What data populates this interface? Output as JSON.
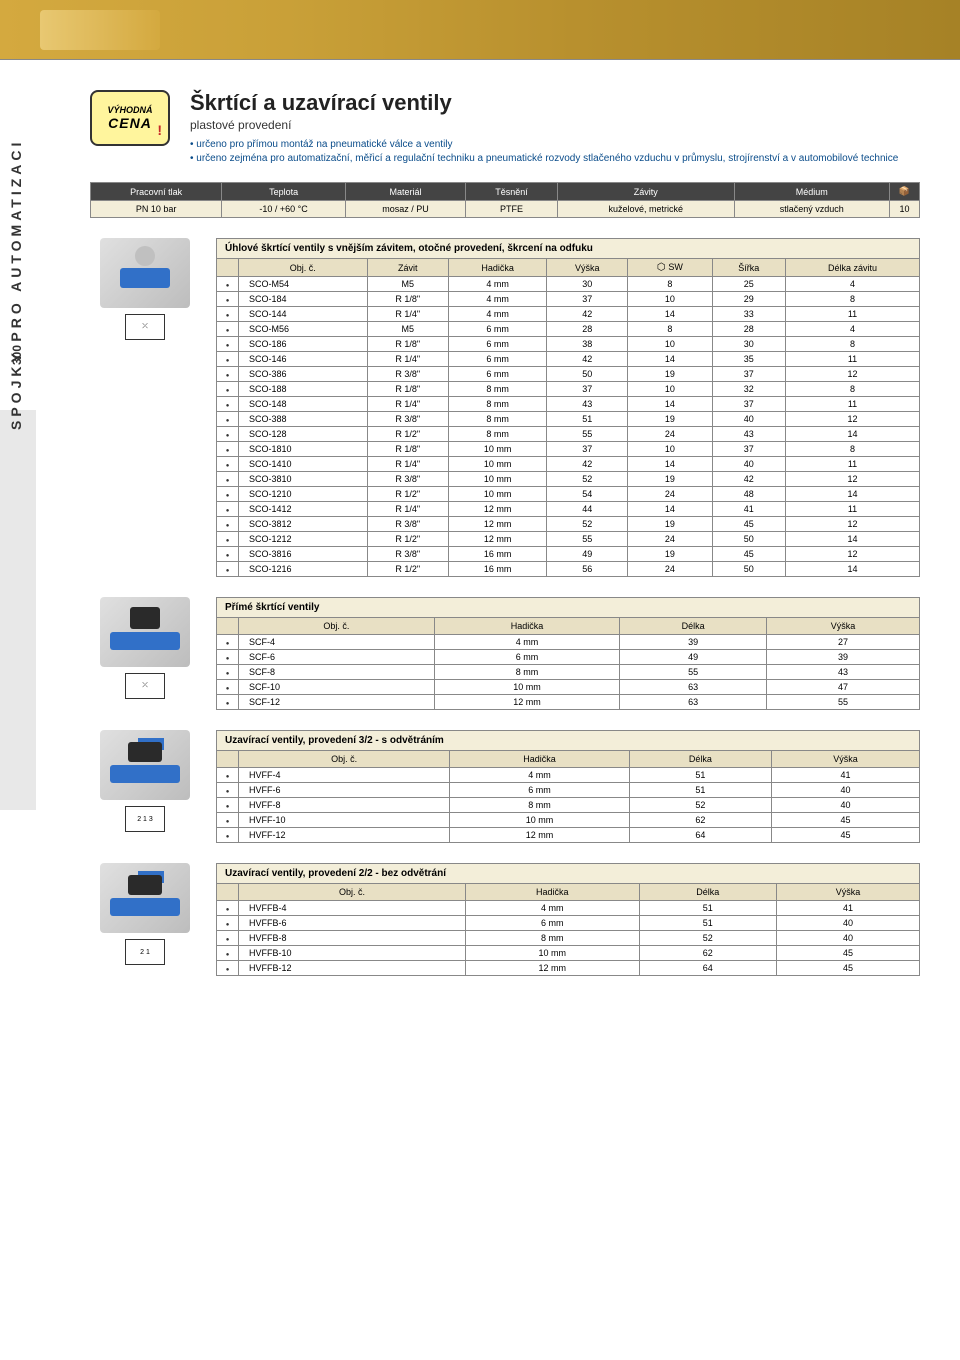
{
  "sidebar": {
    "page_num": "300",
    "tab_text": "SPOJKY PRO AUTOMATIZACI"
  },
  "badge": {
    "line1": "VÝHODNÁ",
    "line2": "CENA"
  },
  "heading": {
    "title": "Škrtící a uzavírací ventily",
    "subtitle": "plastové provedení",
    "bullets": [
      "určeno pro přímou montáž na pneumatické válce a ventily",
      "určeno zejména pro automatizační, měřicí a regulační techniku a pneumatické rozvody stlačeného vzduchu v průmyslu, strojírenství a v automobilové technice"
    ]
  },
  "spec": {
    "headers": [
      "Pracovní tlak",
      "Teplota",
      "Materiál",
      "Těsnění",
      "Závity",
      "Médium",
      ""
    ],
    "row": [
      "PN 10 bar",
      "-10 / +60 °C",
      "mosaz / PU",
      "PTFE",
      "kuželové, metrické",
      "stlačený vzduch",
      "10"
    ]
  },
  "table1": {
    "caption": "Úhlové škrtící ventily s vnějším závitem, otočné provedení, škrcení na odfuku",
    "headers": [
      "",
      "Obj. č.",
      "Závit",
      "Hadička",
      "Výška",
      "SW",
      "Šířka",
      "Délka závitu"
    ],
    "rows": [
      [
        "SCO-M54",
        "M5",
        "4 mm",
        "30",
        "8",
        "25",
        "4"
      ],
      [
        "SCO-184",
        "R 1/8\"",
        "4 mm",
        "37",
        "10",
        "29",
        "8"
      ],
      [
        "SCO-144",
        "R 1/4\"",
        "4 mm",
        "42",
        "14",
        "33",
        "11"
      ],
      [
        "SCO-M56",
        "M5",
        "6 mm",
        "28",
        "8",
        "28",
        "4"
      ],
      [
        "SCO-186",
        "R 1/8\"",
        "6 mm",
        "38",
        "10",
        "30",
        "8"
      ],
      [
        "SCO-146",
        "R 1/4\"",
        "6 mm",
        "42",
        "14",
        "35",
        "11"
      ],
      [
        "SCO-386",
        "R 3/8\"",
        "6 mm",
        "50",
        "19",
        "37",
        "12"
      ],
      [
        "SCO-188",
        "R 1/8\"",
        "8 mm",
        "37",
        "10",
        "32",
        "8"
      ],
      [
        "SCO-148",
        "R 1/4\"",
        "8 mm",
        "43",
        "14",
        "37",
        "11"
      ],
      [
        "SCO-388",
        "R 3/8\"",
        "8 mm",
        "51",
        "19",
        "40",
        "12"
      ],
      [
        "SCO-128",
        "R 1/2\"",
        "8 mm",
        "55",
        "24",
        "43",
        "14"
      ],
      [
        "SCO-1810",
        "R 1/8\"",
        "10 mm",
        "37",
        "10",
        "37",
        "8"
      ],
      [
        "SCO-1410",
        "R 1/4\"",
        "10 mm",
        "42",
        "14",
        "40",
        "11"
      ],
      [
        "SCO-3810",
        "R 3/8\"",
        "10 mm",
        "52",
        "19",
        "42",
        "12"
      ],
      [
        "SCO-1210",
        "R 1/2\"",
        "10 mm",
        "54",
        "24",
        "48",
        "14"
      ],
      [
        "SCO-1412",
        "R 1/4\"",
        "12 mm",
        "44",
        "14",
        "41",
        "11"
      ],
      [
        "SCO-3812",
        "R 3/8\"",
        "12 mm",
        "52",
        "19",
        "45",
        "12"
      ],
      [
        "SCO-1212",
        "R 1/2\"",
        "12 mm",
        "55",
        "24",
        "50",
        "14"
      ],
      [
        "SCO-3816",
        "R 3/8\"",
        "16 mm",
        "49",
        "19",
        "45",
        "12"
      ],
      [
        "SCO-1216",
        "R 1/2\"",
        "16 mm",
        "56",
        "24",
        "50",
        "14"
      ]
    ]
  },
  "table2": {
    "caption": "Přímé škrtící ventily",
    "headers": [
      "",
      "Obj. č.",
      "Hadička",
      "Délka",
      "Výška"
    ],
    "rows": [
      [
        "SCF-4",
        "4 mm",
        "39",
        "27"
      ],
      [
        "SCF-6",
        "6 mm",
        "49",
        "39"
      ],
      [
        "SCF-8",
        "8 mm",
        "55",
        "43"
      ],
      [
        "SCF-10",
        "10 mm",
        "63",
        "47"
      ],
      [
        "SCF-12",
        "12 mm",
        "63",
        "55"
      ]
    ]
  },
  "table3": {
    "caption": "Uzavírací ventily, provedení 3/2 - s odvětráním",
    "headers": [
      "",
      "Obj. č.",
      "Hadička",
      "Délka",
      "Výška"
    ],
    "rows": [
      [
        "HVFF-4",
        "4 mm",
        "51",
        "41"
      ],
      [
        "HVFF-6",
        "6 mm",
        "51",
        "40"
      ],
      [
        "HVFF-8",
        "8 mm",
        "52",
        "40"
      ],
      [
        "HVFF-10",
        "10 mm",
        "62",
        "45"
      ],
      [
        "HVFF-12",
        "12 mm",
        "64",
        "45"
      ]
    ]
  },
  "table4": {
    "caption": "Uzavírací ventily, provedení 2/2 - bez odvětrání",
    "headers": [
      "",
      "Obj. č.",
      "Hadička",
      "Délka",
      "Výška"
    ],
    "rows": [
      [
        "HVFFB-4",
        "4 mm",
        "51",
        "41"
      ],
      [
        "HVFFB-6",
        "6 mm",
        "51",
        "40"
      ],
      [
        "HVFFB-8",
        "8 mm",
        "52",
        "40"
      ],
      [
        "HVFFB-10",
        "10 mm",
        "62",
        "45"
      ],
      [
        "HVFFB-12",
        "12 mm",
        "64",
        "45"
      ]
    ]
  },
  "sym": {
    "s1": "⤫",
    "s2": "⤫",
    "s3": "2\n1 3",
    "s4": "2\n1"
  }
}
